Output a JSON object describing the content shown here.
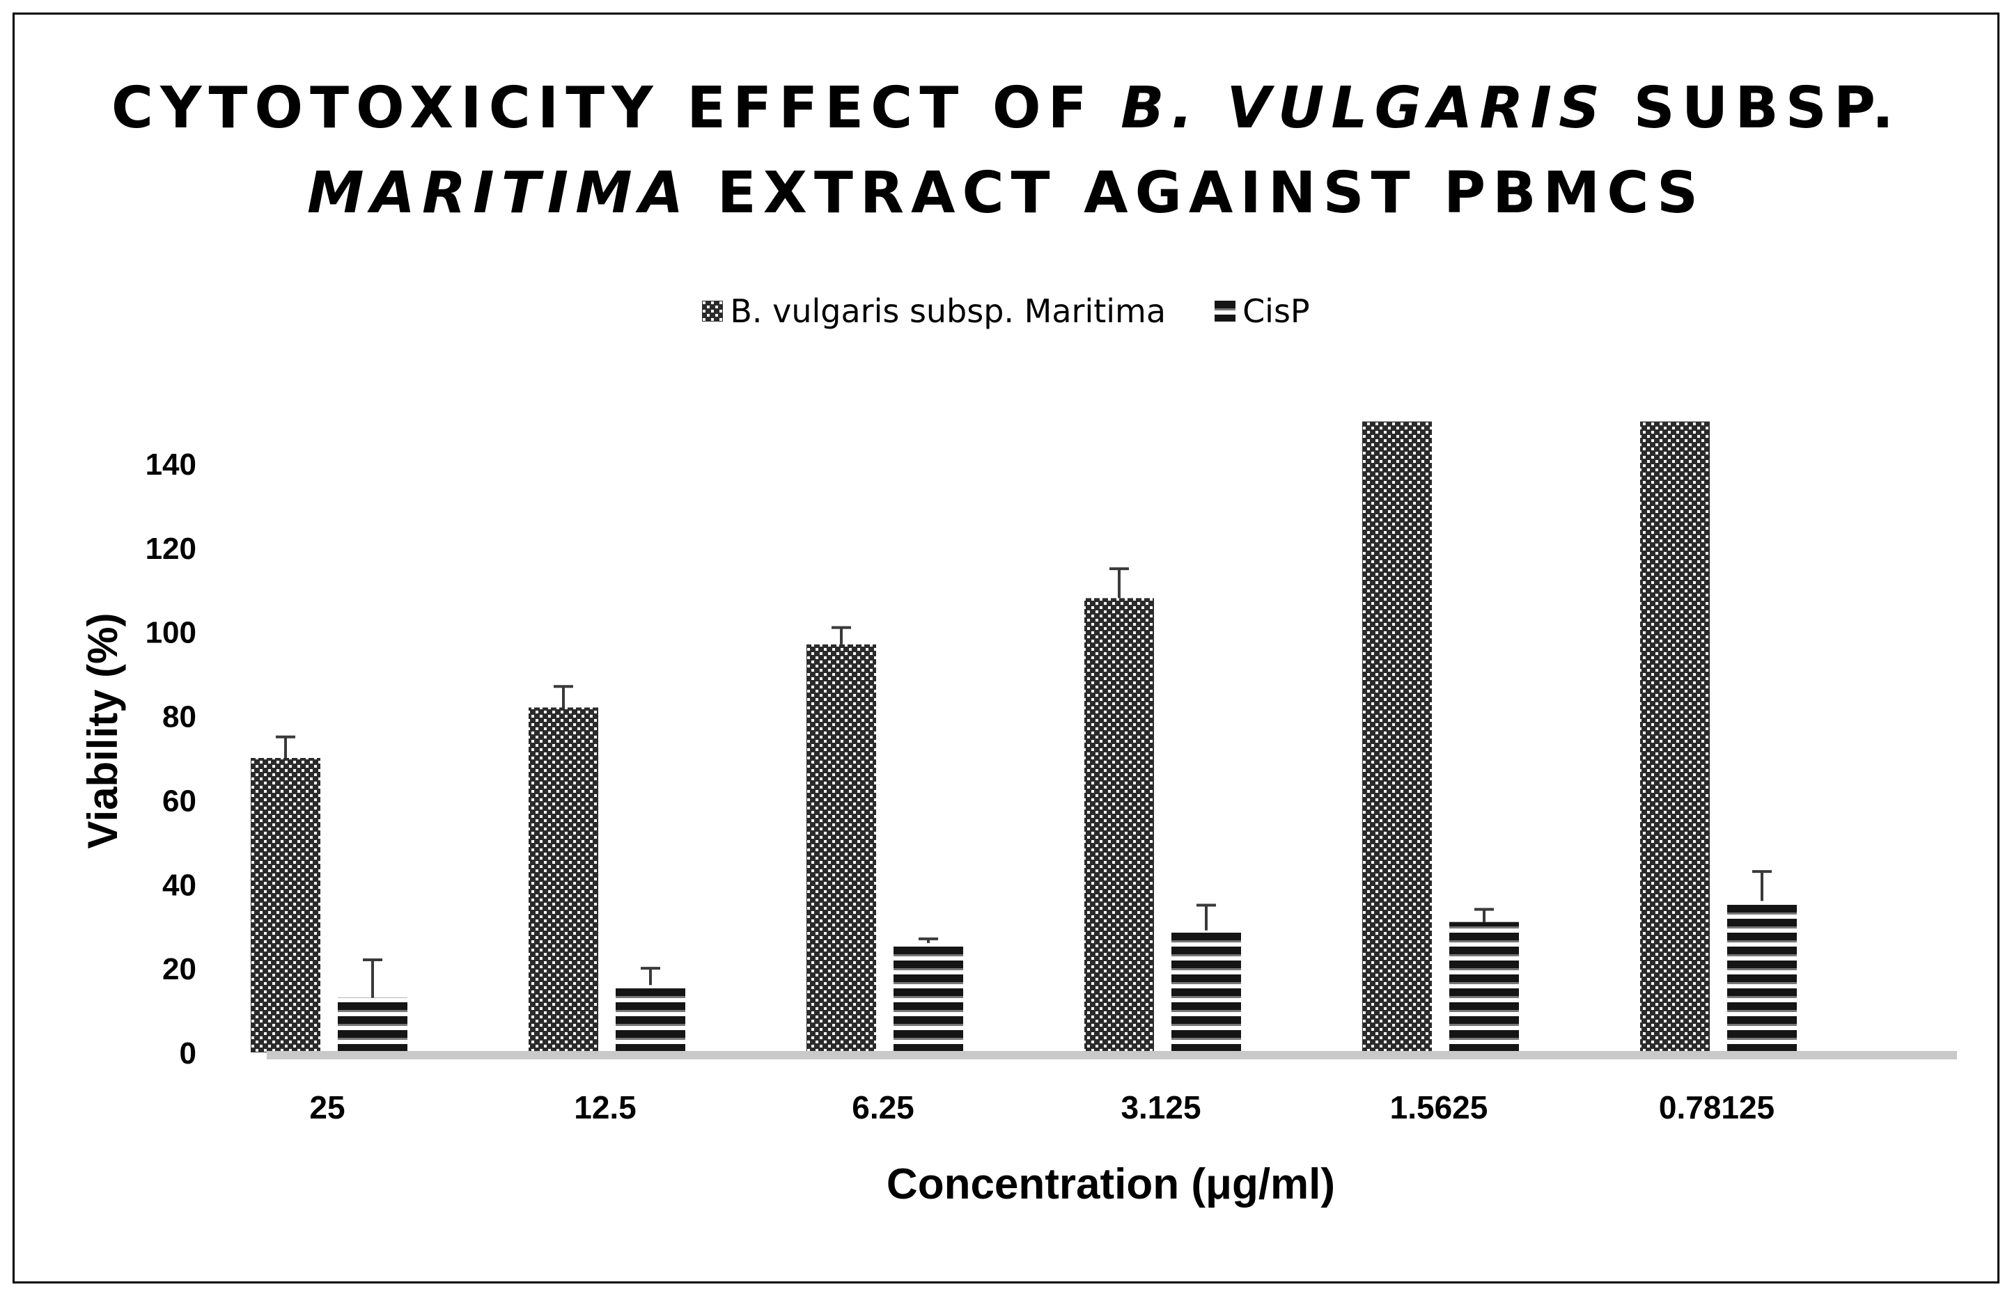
{
  "title": {
    "p1": "CYTOTOXICITY EFFECT OF ",
    "p2": "B. VULGARIS",
    "p3": " SUBSP.",
    "p4": "MARITIMA",
    "p5": " EXTRACT AGAINST PBMCS"
  },
  "legend": {
    "series1": "B. vulgaris subsp. Maritima",
    "series2": "CisP"
  },
  "chart_data": {
    "type": "bar",
    "title": "CYTOTOXICITY EFFECT OF B. VULGARIS SUBSP. MARITIMA EXTRACT AGAINST PBMCS",
    "xlabel": "Concentration (μg/ml)",
    "ylabel": "Viability (%)",
    "ylim": [
      0,
      150
    ],
    "yticks": [
      0,
      20,
      40,
      60,
      80,
      100,
      120,
      140
    ],
    "categories": [
      "25",
      "12.5",
      "6.25",
      "3.125",
      "1.5625",
      "0.78125"
    ],
    "series": [
      {
        "name": "B. vulgaris subsp. Maritima",
        "values": [
          70,
          82,
          97,
          108,
          150,
          150
        ],
        "errors": [
          5,
          5,
          4,
          7,
          0,
          0
        ]
      },
      {
        "name": "CisP",
        "values": [
          13,
          16,
          26,
          29,
          31,
          36
        ],
        "errors": [
          9,
          4,
          1,
          6,
          3,
          7
        ]
      }
    ],
    "legend_position": "top-center",
    "grid": false
  }
}
